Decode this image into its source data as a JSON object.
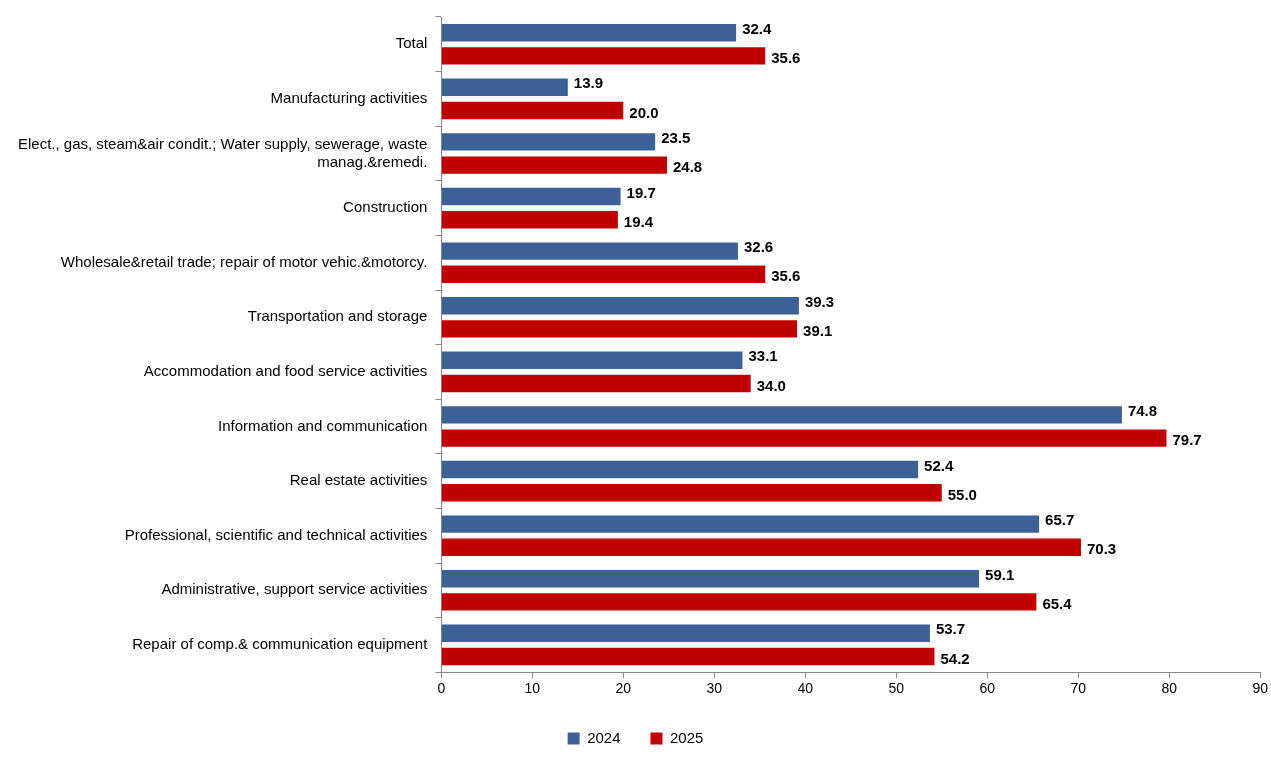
{
  "chart_data": {
    "type": "bar",
    "orientation": "horizontal",
    "categories": [
      "Total",
      "Manufacturing activities",
      "Elect., gas, steam&air condit.; Water supply, sewerage, waste manag.&remedi.",
      "Construction",
      "Wholesale&retail trade; repair of motor vehic.&motorcy.",
      "Transportation and storage",
      "Accommodation and food service activities",
      "Information and communication",
      "Real estate activities",
      "Professional, scientific and technical activities",
      "Administrative, support service activities",
      "Repair of comp.& communication equipment"
    ],
    "series": [
      {
        "name": "2024",
        "color": "#3b6196",
        "values": [
          32.4,
          13.9,
          23.5,
          19.7,
          32.6,
          39.3,
          33.1,
          74.8,
          52.4,
          65.7,
          59.1,
          53.7
        ],
        "value_labels": [
          "32.4",
          "13.9",
          "23.5",
          "19.7",
          "32.6",
          "39.3",
          "33.1",
          "74.8",
          "52.4",
          "65.7",
          "59.1",
          "53.7"
        ]
      },
      {
        "name": "2025",
        "color": "#c00000",
        "values": [
          35.6,
          20.0,
          24.8,
          19.4,
          35.6,
          39.1,
          34.0,
          79.7,
          55.0,
          70.3,
          65.4,
          54.2
        ],
        "value_labels": [
          "35.6",
          "20.0",
          "24.8",
          "19.4",
          "35.6",
          "39.1",
          "34.0",
          "79.7",
          "55.0",
          "70.3",
          "65.4",
          "54.2"
        ]
      }
    ],
    "xlim": [
      0,
      90
    ],
    "xticks": [
      0,
      10,
      20,
      30,
      40,
      50,
      60,
      70,
      80,
      90
    ],
    "grid": false,
    "legend": "bottom"
  }
}
